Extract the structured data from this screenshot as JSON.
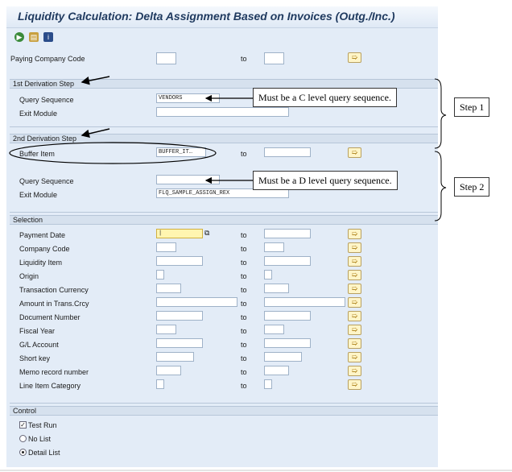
{
  "window": {
    "title": "Liquidity Calculation: Delta Assignment Based on Invoices (Outg./Inc.)"
  },
  "toolbar": {
    "icons": [
      "execute-icon",
      "variant-icon",
      "info-icon"
    ]
  },
  "paying_company": {
    "label": "Paying Company Code",
    "to": "to"
  },
  "step1_section": {
    "header": "1st Derivation Step",
    "query_sequence_label": "Query Sequence",
    "query_sequence_value": "VENDORS",
    "exit_module_label": "Exit Module",
    "exit_module_value": ""
  },
  "step2_section": {
    "header": "2nd Derivation Step",
    "buffer_item_label": "Buffer Item",
    "buffer_item_value": "BUFFER_IT…",
    "to": "to",
    "query_sequence_label": "Query Sequence",
    "query_sequence_value": "",
    "exit_module_label": "Exit Module",
    "exit_module_value": "FLQ_SAMPLE_ASSIGN_REX"
  },
  "selection": {
    "header": "Selection",
    "to": "to",
    "rows": [
      {
        "label": "Payment Date"
      },
      {
        "label": "Company Code"
      },
      {
        "label": "Liquidity Item"
      },
      {
        "label": "Origin"
      },
      {
        "label": "Transaction Currency"
      },
      {
        "label": "Amount in Trans.Crcy"
      },
      {
        "label": "Document Number"
      },
      {
        "label": "Fiscal Year"
      },
      {
        "label": "G/L Account"
      },
      {
        "label": "Short key"
      },
      {
        "label": "Memo record number"
      },
      {
        "label": "Line Item Category"
      }
    ]
  },
  "control": {
    "header": "Control",
    "test_run": "Test Run",
    "no_list": "No List",
    "detail_list": "Detail List"
  },
  "annotations": {
    "callout1": "Must be a C level query sequence.",
    "callout2": "Must be a D level query sequence.",
    "step1": "Step 1",
    "step2": "Step 2"
  }
}
